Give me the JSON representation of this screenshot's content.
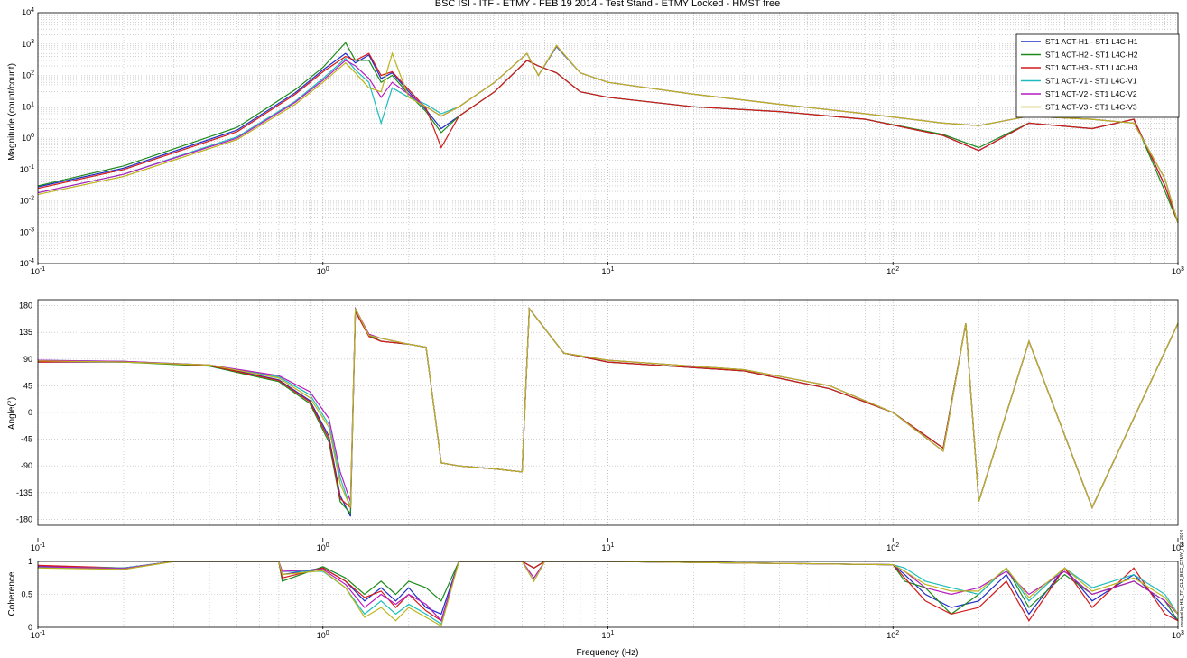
{
  "title": "BSC ISI - ITF - ETMY - FEB 19 2014 - Test Stand - ETMY Locked - HMST free",
  "xlabel": "Frequency (Hz)",
  "footer_note": "created by HIL_TF_CL2_BSC_ETMY_FEB 2014",
  "colors": {
    "ST1 ACT-H1 - ST1 L4C-H1": "#1f2ec9",
    "ST1 ACT-H2 - ST1 L4C-H2": "#1b8a1b",
    "ST1 ACT-H3 - ST1 L4C-H3": "#d41a1a",
    "ST1 ACT-V1 - ST1 L4C-V1": "#1cbcbc",
    "ST1 ACT-V2 - ST1 L4C-V2": "#b71cc0",
    "ST1 ACT-V3 - ST1 L4C-V3": "#bdb41c"
  },
  "chart_data": [
    {
      "type": "line",
      "panel": "magnitude",
      "title": "BSC ISI - ITF - ETMY - FEB 19 2014 - Test Stand - ETMY Locked - HMST free",
      "xlabel": "",
      "ylabel": "Magnitude (count/count)",
      "xscale": "log",
      "yscale": "log",
      "xlim": [
        0.1,
        1000
      ],
      "ylim": [
        0.0001,
        10000
      ],
      "x_ticks": [
        "10^-1",
        "10^0",
        "10^1",
        "10^2",
        "10^3"
      ],
      "y_ticks": [
        "10^-4",
        "10^-3",
        "10^-2",
        "10^-1",
        "10^0",
        "10^1",
        "10^2",
        "10^3",
        "10^4"
      ],
      "grid": true,
      "legend_position": "top-right",
      "x": [
        0.1,
        0.2,
        0.5,
        0.8,
        1.0,
        1.2,
        1.3,
        1.45,
        1.6,
        1.75,
        2.0,
        2.3,
        2.6,
        3.0,
        4.0,
        5.2,
        5.7,
        6.6,
        8.0,
        10,
        20,
        40,
        80,
        150,
        200,
        300,
        500,
        700,
        900,
        1000
      ],
      "series": [
        {
          "name": "ST1 ACT-H1 - ST1 L4C-H1",
          "values": [
            0.028,
            0.11,
            1.8,
            28,
            150,
            500,
            250,
            450,
            80,
            120,
            30,
            8,
            2,
            5,
            30,
            300,
            200,
            120,
            30,
            20,
            10,
            7,
            4,
            1.2,
            0.4,
            3,
            2,
            4,
            0.03,
            0.002
          ]
        },
        {
          "name": "ST1 ACT-H2 - ST1 L4C-H2",
          "values": [
            0.03,
            0.13,
            2.2,
            35,
            180,
            1100,
            300,
            300,
            60,
            100,
            25,
            7,
            1.5,
            5,
            30,
            300,
            200,
            120,
            30,
            20,
            10,
            7,
            4,
            1.3,
            0.5,
            3,
            2,
            4,
            0.02,
            0.002
          ]
        },
        {
          "name": "ST1 ACT-H3 - ST1 L4C-H3",
          "values": [
            0.025,
            0.1,
            1.6,
            25,
            130,
            400,
            300,
            500,
            100,
            130,
            35,
            9,
            0.5,
            5,
            30,
            300,
            200,
            120,
            30,
            20,
            10,
            7,
            4,
            1.2,
            0.4,
            3,
            2,
            4,
            0.03,
            0.002
          ]
        },
        {
          "name": "ST1 ACT-V1 - ST1 L4C-V1",
          "values": [
            0.018,
            0.07,
            1.1,
            15,
            80,
            350,
            150,
            60,
            3,
            40,
            20,
            12,
            6,
            10,
            60,
            500,
            100,
            800,
            120,
            60,
            25,
            12,
            6,
            3,
            2.5,
            5,
            4,
            3,
            0.05,
            0.002
          ]
        },
        {
          "name": "ST1 ACT-V2 - ST1 L4C-V2",
          "values": [
            0.018,
            0.07,
            1.0,
            14,
            70,
            300,
            200,
            80,
            20,
            60,
            25,
            10,
            5,
            10,
            60,
            500,
            100,
            850,
            120,
            60,
            25,
            12,
            6,
            3,
            2.5,
            5,
            4,
            3,
            0.05,
            0.002
          ]
        },
        {
          "name": "ST1 ACT-V3 - ST1 L4C-V3",
          "values": [
            0.016,
            0.06,
            0.9,
            12,
            60,
            250,
            120,
            40,
            30,
            500,
            20,
            10,
            5,
            10,
            60,
            500,
            100,
            900,
            120,
            60,
            25,
            12,
            6,
            3,
            2.5,
            5,
            4,
            3,
            0.05,
            0.002
          ]
        }
      ]
    },
    {
      "type": "line",
      "panel": "phase",
      "xlabel": "",
      "ylabel": "Angle(°)",
      "xscale": "log",
      "xlim": [
        0.1,
        1000
      ],
      "ylim": [
        -190,
        190
      ],
      "x_ticks": [
        "10^-1",
        "10^0",
        "10^1",
        "10^2",
        "10^3"
      ],
      "y_ticks": [
        "180",
        "135",
        "90",
        "45",
        "0",
        "-45",
        "-90",
        "-135",
        "-180"
      ],
      "grid": true,
      "x": [
        0.1,
        0.2,
        0.4,
        0.7,
        0.9,
        1.05,
        1.15,
        1.25,
        1.3,
        1.45,
        1.6,
        2.0,
        2.3,
        2.6,
        3.0,
        4.0,
        5.0,
        5.3,
        6.5,
        7.0,
        10,
        30,
        60,
        100,
        150,
        180,
        200,
        300,
        500,
        1000
      ],
      "series": [
        {
          "name": "ST1 ACT-H1 - ST1 L4C-H1",
          "values": [
            85,
            85,
            80,
            55,
            20,
            -40,
            -140,
            -175,
            170,
            130,
            120,
            115,
            110,
            -85,
            -90,
            -95,
            -100,
            175,
            120,
            100,
            85,
            70,
            40,
            0,
            -60,
            150,
            -150,
            120,
            -160,
            150
          ]
        },
        {
          "name": "ST1 ACT-H2 - ST1 L4C-H2",
          "values": [
            86,
            85,
            78,
            52,
            15,
            -50,
            -150,
            -170,
            175,
            130,
            120,
            115,
            110,
            -85,
            -90,
            -95,
            -100,
            175,
            120,
            100,
            85,
            70,
            40,
            0,
            -60,
            150,
            -150,
            120,
            -160,
            150
          ]
        },
        {
          "name": "ST1 ACT-H3 - ST1 L4C-H3",
          "values": [
            85,
            86,
            79,
            54,
            18,
            -45,
            -145,
            -160,
            170,
            128,
            120,
            115,
            110,
            -85,
            -90,
            -95,
            -100,
            175,
            120,
            100,
            85,
            70,
            40,
            0,
            -60,
            150,
            -150,
            120,
            -160,
            150
          ]
        },
        {
          "name": "ST1 ACT-V1 - ST1 L4C-V1",
          "values": [
            88,
            86,
            80,
            60,
            30,
            -20,
            -110,
            -160,
            175,
            130,
            125,
            115,
            110,
            -85,
            -90,
            -95,
            -100,
            175,
            120,
            100,
            88,
            72,
            45,
            0,
            -65,
            150,
            -150,
            120,
            -160,
            150
          ]
        },
        {
          "name": "ST1 ACT-V2 - ST1 L4C-V2",
          "values": [
            88,
            86,
            80,
            62,
            35,
            -10,
            -100,
            -150,
            175,
            132,
            125,
            115,
            110,
            -85,
            -90,
            -95,
            -100,
            175,
            120,
            100,
            88,
            72,
            45,
            0,
            -65,
            150,
            -150,
            120,
            -160,
            150
          ]
        },
        {
          "name": "ST1 ACT-V3 - ST1 L4C-V3",
          "values": [
            87,
            85,
            80,
            58,
            25,
            -25,
            -120,
            -160,
            175,
            130,
            125,
            115,
            110,
            -85,
            -90,
            -95,
            -100,
            175,
            120,
            100,
            88,
            72,
            45,
            0,
            -65,
            150,
            -150,
            120,
            -160,
            150
          ]
        }
      ]
    },
    {
      "type": "line",
      "panel": "coherence",
      "xlabel": "Frequency (Hz)",
      "ylabel": "Coherence",
      "xscale": "log",
      "xlim": [
        0.1,
        1000
      ],
      "ylim": [
        0,
        1
      ],
      "x_ticks": [
        "10^-1",
        "10^0",
        "10^1",
        "10^2",
        "10^3"
      ],
      "y_ticks": [
        "1",
        "0.5",
        "0"
      ],
      "grid": true,
      "x": [
        0.1,
        0.2,
        0.3,
        0.7,
        0.72,
        1.0,
        1.2,
        1.4,
        1.6,
        1.8,
        2.0,
        2.3,
        2.6,
        3.0,
        5.0,
        5.5,
        6.0,
        10,
        100,
        110,
        130,
        160,
        200,
        250,
        300,
        400,
        500,
        700,
        900,
        1000
      ],
      "series": [
        {
          "name": "ST1 ACT-H1 - ST1 L4C-H1",
          "values": [
            0.93,
            0.9,
            1,
            1,
            0.8,
            0.9,
            0.7,
            0.4,
            0.6,
            0.4,
            0.6,
            0.3,
            0.2,
            1,
            1,
            0.9,
            1,
            1,
            0.95,
            0.8,
            0.5,
            0.3,
            0.4,
            0.8,
            0.2,
            0.9,
            0.4,
            0.8,
            0.3,
            0.1
          ]
        },
        {
          "name": "ST1 ACT-H2 - ST1 L4C-H2",
          "values": [
            0.92,
            0.88,
            1,
            1,
            0.7,
            0.92,
            0.75,
            0.5,
            0.7,
            0.5,
            0.7,
            0.6,
            0.4,
            1,
            1,
            0.9,
            1,
            1,
            0.95,
            0.7,
            0.6,
            0.2,
            0.5,
            0.9,
            0.3,
            0.8,
            0.5,
            0.7,
            0.4,
            0.1
          ]
        },
        {
          "name": "ST1 ACT-H3 - ST1 L4C-H3",
          "values": [
            0.94,
            0.9,
            1,
            1,
            0.75,
            0.9,
            0.7,
            0.45,
            0.55,
            0.3,
            0.5,
            0.25,
            0.1,
            1,
            1,
            0.9,
            1,
            1,
            0.95,
            0.75,
            0.4,
            0.2,
            0.3,
            0.7,
            0.1,
            0.9,
            0.3,
            0.9,
            0.2,
            0.1
          ]
        },
        {
          "name": "ST1 ACT-V1 - ST1 L4C-V1",
          "values": [
            0.91,
            0.9,
            1,
            1,
            0.85,
            0.85,
            0.6,
            0.2,
            0.4,
            0.2,
            0.35,
            0.2,
            0.05,
            1,
            1,
            0.7,
            1,
            1,
            0.95,
            0.9,
            0.7,
            0.6,
            0.5,
            0.9,
            0.4,
            0.9,
            0.6,
            0.8,
            0.5,
            0.2
          ]
        },
        {
          "name": "ST1 ACT-V2 - ST1 L4C-V2",
          "values": [
            0.92,
            0.89,
            1,
            1,
            0.85,
            0.88,
            0.65,
            0.3,
            0.5,
            0.35,
            0.5,
            0.35,
            0.1,
            1,
            1,
            0.75,
            1,
            1,
            0.95,
            0.85,
            0.6,
            0.5,
            0.6,
            0.85,
            0.5,
            0.85,
            0.5,
            0.7,
            0.4,
            0.2
          ]
        },
        {
          "name": "ST1 ACT-V3 - ST1 L4C-V3",
          "values": [
            0.9,
            0.88,
            1,
            1,
            0.8,
            0.86,
            0.6,
            0.15,
            0.3,
            0.1,
            0.3,
            0.15,
            0.02,
            1,
            1,
            0.7,
            1,
            1,
            0.95,
            0.85,
            0.65,
            0.55,
            0.55,
            0.9,
            0.45,
            0.9,
            0.55,
            0.75,
            0.45,
            0.2
          ]
        }
      ]
    }
  ]
}
